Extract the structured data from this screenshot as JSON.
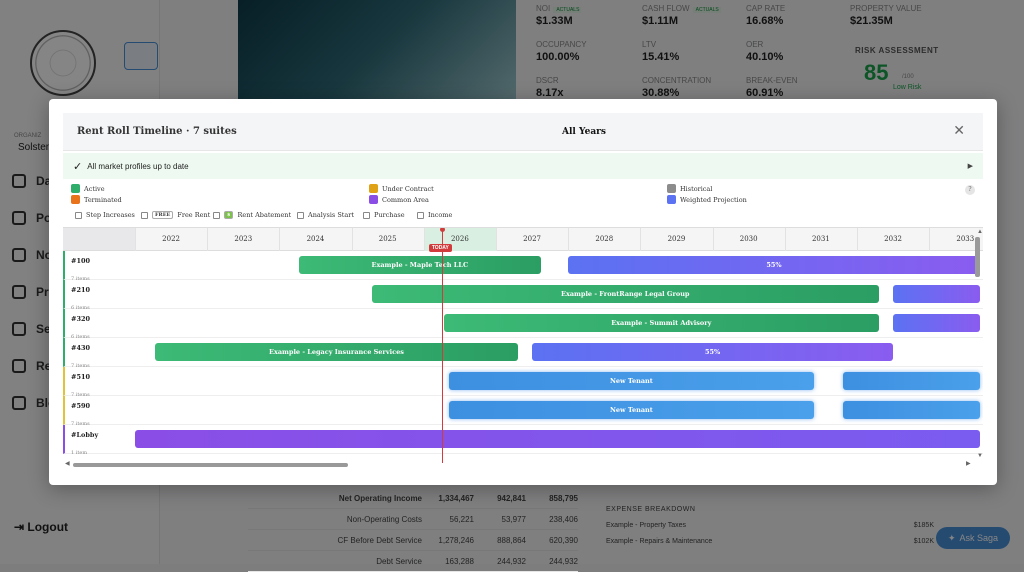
{
  "sidebar": {
    "org_label": "ORGANIZ",
    "org_name": "Solsten",
    "items": [
      {
        "label": "Das",
        "icon": "dashboard-icon"
      },
      {
        "label": "Por",
        "icon": "portfolio-icon"
      },
      {
        "label": "Not",
        "icon": "bell-icon"
      },
      {
        "label": "Pro",
        "icon": "profile-icon"
      },
      {
        "label": "Set",
        "icon": "gear-icon"
      },
      {
        "label": "Rep",
        "icon": "report-icon"
      },
      {
        "label": "Blo",
        "icon": "external-link-icon"
      }
    ],
    "logout": "Logout"
  },
  "kpis": [
    {
      "label": "NOI",
      "badge": "ACTUALS",
      "value": "$1.33M"
    },
    {
      "label": "CASH FLOW",
      "badge": "ACTUALS",
      "value": "$1.11M"
    },
    {
      "label": "CAP RATE",
      "value": "16.68%"
    },
    {
      "label": "PROPERTY VALUE",
      "value": "$21.35M"
    },
    {
      "label": "OCCUPANCY",
      "value": "100.00%"
    },
    {
      "label": "LTV",
      "value": "15.41%"
    },
    {
      "label": "OER",
      "value": "40.10%"
    },
    {
      "label": "DSCR",
      "value": "8.17x"
    },
    {
      "label": "CONCENTRATION",
      "value": "30.88%"
    },
    {
      "label": "BREAK-EVEN",
      "value": "60.91%"
    }
  ],
  "risk": {
    "label": "RISK ASSESSMENT",
    "score": "85",
    "out_of": "/100",
    "level": "Low Risk"
  },
  "bottom_table": [
    {
      "label": "Net Operating Income",
      "values": [
        "1,334,467",
        "942,841",
        "858,795"
      ]
    },
    {
      "label": "Non-Operating Costs",
      "values": [
        "56,221",
        "53,977",
        "238,406"
      ]
    },
    {
      "label": "CF Before Debt Service",
      "values": [
        "1,278,246",
        "888,864",
        "620,390"
      ]
    },
    {
      "label": "Debt Service",
      "values": [
        "163,288",
        "244,932",
        "244,932"
      ]
    }
  ],
  "expense": {
    "title": "EXPENSE BREAKDOWN",
    "rows": [
      {
        "label": "Example - Property Taxes",
        "value": "$185K"
      },
      {
        "label": "Example - Repairs & Maintenance",
        "value": "$102K"
      }
    ]
  },
  "ask_button": "Ask Saga",
  "modal": {
    "title": "Rent Roll Timeline · 7 suites",
    "period": "All Years",
    "status_text": "All market profiles up to date",
    "legend": [
      {
        "label": "Active",
        "color": "#2eae6a"
      },
      {
        "label": "Terminated",
        "color": "#e8731b"
      },
      {
        "label": "Under Contract",
        "color": "#e0a216"
      },
      {
        "label": "Common Area",
        "color": "#8a4ee6"
      },
      {
        "label": "Historical",
        "color": "#8c8c8c"
      },
      {
        "label": "Weighted Projection",
        "color": "#5b72f2"
      }
    ],
    "help_label": "?",
    "toggles": [
      {
        "label": "Step Increases",
        "chip": ""
      },
      {
        "label": "Free Rent",
        "chip": "FREE"
      },
      {
        "label": "Rent Abatement",
        "chip": "$"
      },
      {
        "label": "Analysis Start",
        "chip": ""
      },
      {
        "label": "Purchase",
        "chip": ""
      },
      {
        "label": "Income",
        "chip": ""
      }
    ],
    "years": [
      "2022",
      "2023",
      "2024",
      "2025",
      "2026",
      "2027",
      "2028",
      "2029",
      "2030",
      "2031",
      "2032",
      "2033"
    ],
    "today_label": "TODAY",
    "suites": [
      {
        "id": "#100",
        "items": "7 items",
        "accent": "#2eae6a",
        "bars": [
          {
            "label": "Example - Maple Tech LLC",
            "start": 2024.27,
            "end": 2027.62,
            "kind": "active"
          },
          {
            "label": "55%",
            "start": 2028.0,
            "end": 2033.7,
            "kind": "projection"
          }
        ]
      },
      {
        "id": "#210",
        "items": "6 items",
        "accent": "#2eae6a",
        "bars": [
          {
            "label": "Example - FrontRange Legal Group",
            "start": 2025.28,
            "end": 2032.3,
            "kind": "active"
          },
          {
            "label": "",
            "start": 2032.5,
            "end": 2033.7,
            "kind": "projection"
          }
        ]
      },
      {
        "id": "#320",
        "items": "6 items",
        "accent": "#2eae6a",
        "bars": [
          {
            "label": "Example - Summit Advisory",
            "start": 2026.28,
            "end": 2032.3,
            "kind": "active"
          },
          {
            "label": "",
            "start": 2032.5,
            "end": 2033.7,
            "kind": "projection"
          }
        ]
      },
      {
        "id": "#430",
        "items": "7 items",
        "accent": "#2eae6a",
        "bars": [
          {
            "label": "Example - Legacy Insurance Services",
            "start": 2022.28,
            "end": 2027.3,
            "kind": "active"
          },
          {
            "label": "55%",
            "start": 2027.5,
            "end": 2032.5,
            "kind": "projection"
          }
        ]
      },
      {
        "id": "#510",
        "items": "7 items",
        "accent": "#e0c33a",
        "bars": [
          {
            "label": "New Tenant",
            "start": 2026.35,
            "end": 2031.4,
            "kind": "new"
          },
          {
            "label": "",
            "start": 2031.8,
            "end": 2033.7,
            "kind": "new"
          }
        ]
      },
      {
        "id": "#590",
        "items": "7 items",
        "accent": "#e0c33a",
        "bars": [
          {
            "label": "New Tenant",
            "start": 2026.35,
            "end": 2031.4,
            "kind": "new"
          },
          {
            "label": "",
            "start": 2031.8,
            "end": 2033.7,
            "kind": "new"
          }
        ]
      },
      {
        "id": "#Lobby",
        "items": "1 item",
        "accent": "#8a4ee6",
        "bars": [
          {
            "label": "",
            "start": 2022.0,
            "end": 2033.7,
            "kind": "common"
          }
        ]
      }
    ],
    "today": 2026.25
  }
}
